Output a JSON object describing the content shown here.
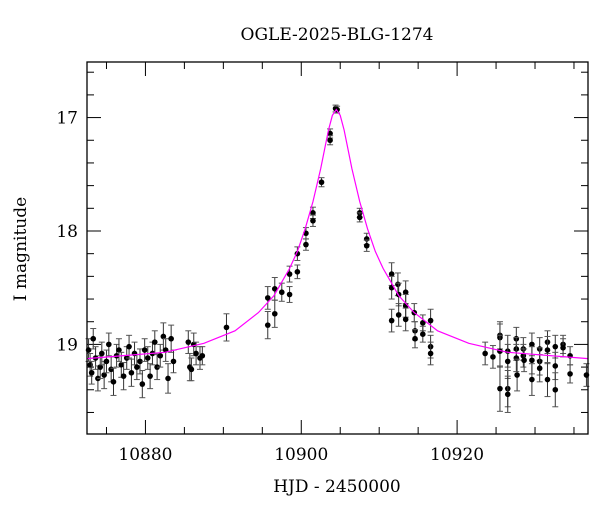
{
  "chart_data": {
    "type": "scatter",
    "title": "OGLE-2025-BLG-1274",
    "xlabel": "HJD - 2450000",
    "ylabel": "I magnitude",
    "xlim": [
      10872.5,
      10936.8
    ],
    "ylim": [
      19.79,
      16.51
    ],
    "y_inverted": true,
    "x_ticks": [
      10880,
      10900,
      10920
    ],
    "x_tick_labels": [
      "10880",
      "10900",
      "10920"
    ],
    "x_minor_step": 5,
    "y_ticks": [
      17,
      18,
      19
    ],
    "y_tick_labels": [
      "17",
      "18",
      "19"
    ],
    "y_minor_step": 0.2,
    "grid": false,
    "colors": {
      "points": "#000000",
      "model": "#ff00ff"
    },
    "points": [
      [
        10872.7,
        19.05,
        0.1
      ],
      [
        10872.9,
        19.18,
        0.1
      ],
      [
        10873.1,
        19.25,
        0.1
      ],
      [
        10873.3,
        18.95,
        0.09
      ],
      [
        10873.6,
        19.12,
        0.1
      ],
      [
        10873.9,
        19.3,
        0.11
      ],
      [
        10874.2,
        19.2,
        0.1
      ],
      [
        10874.4,
        19.08,
        0.1
      ],
      [
        10874.7,
        19.27,
        0.12
      ],
      [
        10875.0,
        19.15,
        0.1
      ],
      [
        10875.3,
        19.0,
        0.1
      ],
      [
        10875.6,
        19.22,
        0.11
      ],
      [
        10875.9,
        19.33,
        0.12
      ],
      [
        10876.3,
        19.1,
        0.1
      ],
      [
        10876.6,
        19.05,
        0.1
      ],
      [
        10876.9,
        19.18,
        0.11
      ],
      [
        10877.2,
        19.28,
        0.12
      ],
      [
        10877.6,
        19.12,
        0.1
      ],
      [
        10877.9,
        19.02,
        0.1
      ],
      [
        10878.2,
        19.25,
        0.12
      ],
      [
        10878.6,
        19.08,
        0.1
      ],
      [
        10878.9,
        19.2,
        0.11
      ],
      [
        10879.3,
        19.15,
        0.11
      ],
      [
        10879.6,
        19.35,
        0.12
      ],
      [
        10879.9,
        19.05,
        0.1
      ],
      [
        10880.3,
        19.12,
        0.1
      ],
      [
        10880.6,
        19.28,
        0.11
      ],
      [
        10880.9,
        19.08,
        0.1
      ],
      [
        10881.2,
        18.98,
        0.1
      ],
      [
        10881.5,
        19.2,
        0.11
      ],
      [
        10881.9,
        19.1,
        0.1
      ],
      [
        10882.3,
        18.93,
        0.12
      ],
      [
        10882.6,
        19.05,
        0.1
      ],
      [
        10882.9,
        19.3,
        0.13
      ],
      [
        10883.3,
        18.95,
        0.12
      ],
      [
        10883.6,
        19.15,
        0.1
      ],
      [
        10885.5,
        18.98,
        0.1
      ],
      [
        10885.7,
        19.2,
        0.12
      ],
      [
        10885.9,
        19.22,
        0.1
      ],
      [
        10886.2,
        19.0,
        0.1
      ],
      [
        10886.5,
        19.08,
        0.1
      ],
      [
        10887.0,
        19.12,
        0.1
      ],
      [
        10887.3,
        19.1,
        0.08
      ],
      [
        10890.4,
        18.85,
        0.12
      ],
      [
        10895.7,
        18.59,
        0.1
      ],
      [
        10895.7,
        18.83,
        0.12
      ],
      [
        10896.6,
        18.51,
        0.1
      ],
      [
        10896.6,
        18.73,
        0.12
      ],
      [
        10897.5,
        18.54,
        0.08
      ],
      [
        10898.5,
        18.38,
        0.07
      ],
      [
        10898.5,
        18.56,
        0.07
      ],
      [
        10899.5,
        18.2,
        0.06
      ],
      [
        10899.5,
        18.36,
        0.06
      ],
      [
        10900.6,
        18.02,
        0.05
      ],
      [
        10900.6,
        18.12,
        0.05
      ],
      [
        10901.5,
        17.84,
        0.05
      ],
      [
        10901.5,
        17.91,
        0.05
      ],
      [
        10902.6,
        17.57,
        0.04
      ],
      [
        10903.7,
        17.14,
        0.04
      ],
      [
        10903.7,
        17.2,
        0.04
      ],
      [
        10904.4,
        16.92,
        0.03
      ],
      [
        10904.6,
        16.93,
        0.03
      ],
      [
        10907.5,
        17.84,
        0.04
      ],
      [
        10907.5,
        17.88,
        0.04
      ],
      [
        10908.4,
        18.07,
        0.05
      ],
      [
        10908.4,
        18.13,
        0.05
      ],
      [
        10911.6,
        18.38,
        0.1
      ],
      [
        10911.6,
        18.5,
        0.1
      ],
      [
        10911.6,
        18.79,
        0.1
      ],
      [
        10912.4,
        18.47,
        0.1
      ],
      [
        10912.5,
        18.56,
        0.1
      ],
      [
        10912.5,
        18.74,
        0.1
      ],
      [
        10913.4,
        18.54,
        0.1
      ],
      [
        10913.4,
        18.66,
        0.1
      ],
      [
        10913.4,
        18.78,
        0.1
      ],
      [
        10914.5,
        18.72,
        0.08
      ],
      [
        10914.6,
        18.88,
        0.08
      ],
      [
        10914.6,
        18.95,
        0.08
      ],
      [
        10915.6,
        18.81,
        0.07
      ],
      [
        10915.6,
        18.91,
        0.07
      ],
      [
        10916.6,
        18.79,
        0.1
      ],
      [
        10916.6,
        19.02,
        0.1
      ],
      [
        10916.6,
        19.08,
        0.1
      ],
      [
        10923.6,
        19.08,
        0.1
      ],
      [
        10924.6,
        19.11,
        0.1
      ],
      [
        10925.5,
        18.92,
        0.12
      ],
      [
        10925.5,
        18.94,
        0.12
      ],
      [
        10925.5,
        19.06,
        0.14
      ],
      [
        10925.5,
        19.39,
        0.2
      ],
      [
        10926.5,
        19.06,
        0.14
      ],
      [
        10926.5,
        19.15,
        0.15
      ],
      [
        10926.5,
        19.39,
        0.16
      ],
      [
        10926.5,
        19.44,
        0.16
      ],
      [
        10927.6,
        18.95,
        0.1
      ],
      [
        10927.6,
        19.04,
        0.1
      ],
      [
        10927.6,
        19.12,
        0.12
      ],
      [
        10927.7,
        19.27,
        0.14
      ],
      [
        10928.5,
        19.04,
        0.1
      ],
      [
        10928.5,
        19.1,
        0.1
      ],
      [
        10928.6,
        19.14,
        0.1
      ],
      [
        10929.6,
        19.0,
        0.1
      ],
      [
        10929.6,
        19.14,
        0.12
      ],
      [
        10929.6,
        19.31,
        0.14
      ],
      [
        10930.6,
        19.04,
        0.1
      ],
      [
        10930.6,
        19.15,
        0.12
      ],
      [
        10930.6,
        19.21,
        0.12
      ],
      [
        10931.6,
        18.98,
        0.1
      ],
      [
        10931.6,
        19.05,
        0.12
      ],
      [
        10931.6,
        19.31,
        0.15
      ],
      [
        10932.6,
        19.02,
        0.1
      ],
      [
        10932.6,
        19.19,
        0.12
      ],
      [
        10932.6,
        19.4,
        0.15
      ],
      [
        10933.6,
        19.0,
        0.08
      ],
      [
        10933.6,
        19.03,
        0.08
      ],
      [
        10934.5,
        19.1,
        0.08
      ],
      [
        10934.5,
        19.26,
        0.08
      ],
      [
        10936.6,
        19.27,
        0.1
      ]
    ],
    "model": {
      "x": [
        10872.0,
        10882.5,
        10887.5,
        10891.5,
        10894.5,
        10896.5,
        10898.5,
        10899.5,
        10900.5,
        10901.5,
        10902.5,
        10903.0,
        10903.5,
        10904.0,
        10904.5,
        10905.0,
        10905.5,
        10906.0,
        10906.5,
        10907.5,
        10908.5,
        10909.5,
        10910.5,
        10912.5,
        10914.5,
        10917.5,
        10921.5,
        10926.5,
        10937.0
      ],
      "y": [
        19.125,
        19.07,
        18.99,
        18.88,
        18.72,
        18.57,
        18.33,
        18.18,
        17.98,
        17.74,
        17.45,
        17.28,
        17.11,
        16.98,
        16.93,
        16.98,
        17.11,
        17.28,
        17.45,
        17.74,
        17.98,
        18.18,
        18.33,
        18.57,
        18.72,
        18.88,
        18.99,
        19.07,
        19.125
      ]
    }
  }
}
